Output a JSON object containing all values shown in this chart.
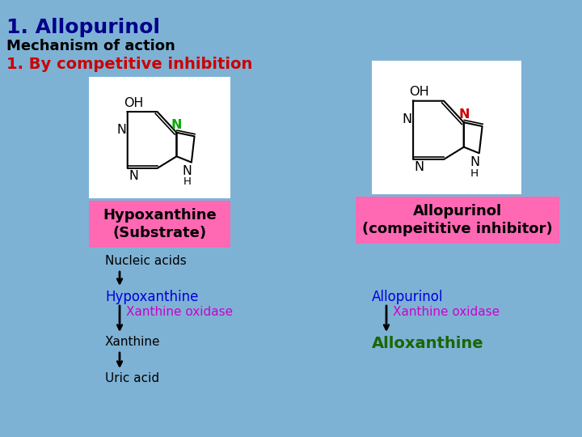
{
  "background_color": "#7EB2D5",
  "title": "1. Allopurinol",
  "title_color": "#00008B",
  "subtitle": "Mechanism of action",
  "subtitle_color": "#000000",
  "section_title": "1. By competitive inhibition",
  "section_title_color": "#CC0000",
  "label_left": "Hypoxanthine\n(Substrate)",
  "label_right": "Allopurinol\n(compeititive inhibitor)",
  "label_bg_color": "#FF69B4",
  "label_text_color": "#000000",
  "left_flow": [
    {
      "text": "Nucleic acids",
      "color": "#000000",
      "bold": false
    },
    {
      "text": "Hypoxanthine",
      "color": "#0000DD",
      "bold": false
    },
    {
      "text": "Xanthine oxidase",
      "color": "#CC00CC",
      "indent": true,
      "bold": false
    },
    {
      "text": "Xanthine",
      "color": "#000000",
      "bold": false
    },
    {
      "text": "Uric acid",
      "color": "#000000",
      "bold": false
    }
  ],
  "right_flow": [
    {
      "text": "Allopurinol",
      "color": "#0000DD",
      "bold": false
    },
    {
      "text": "Xanthine oxidase",
      "color": "#CC00CC",
      "indent": true,
      "bold": false
    },
    {
      "text": "Alloxanthine",
      "color": "#1A6600",
      "bold": true
    }
  ],
  "arrow_color": "#000000",
  "font_size_title": 18,
  "font_size_subtitle": 13,
  "font_size_section": 14,
  "font_size_label": 12,
  "font_size_flow": 11
}
